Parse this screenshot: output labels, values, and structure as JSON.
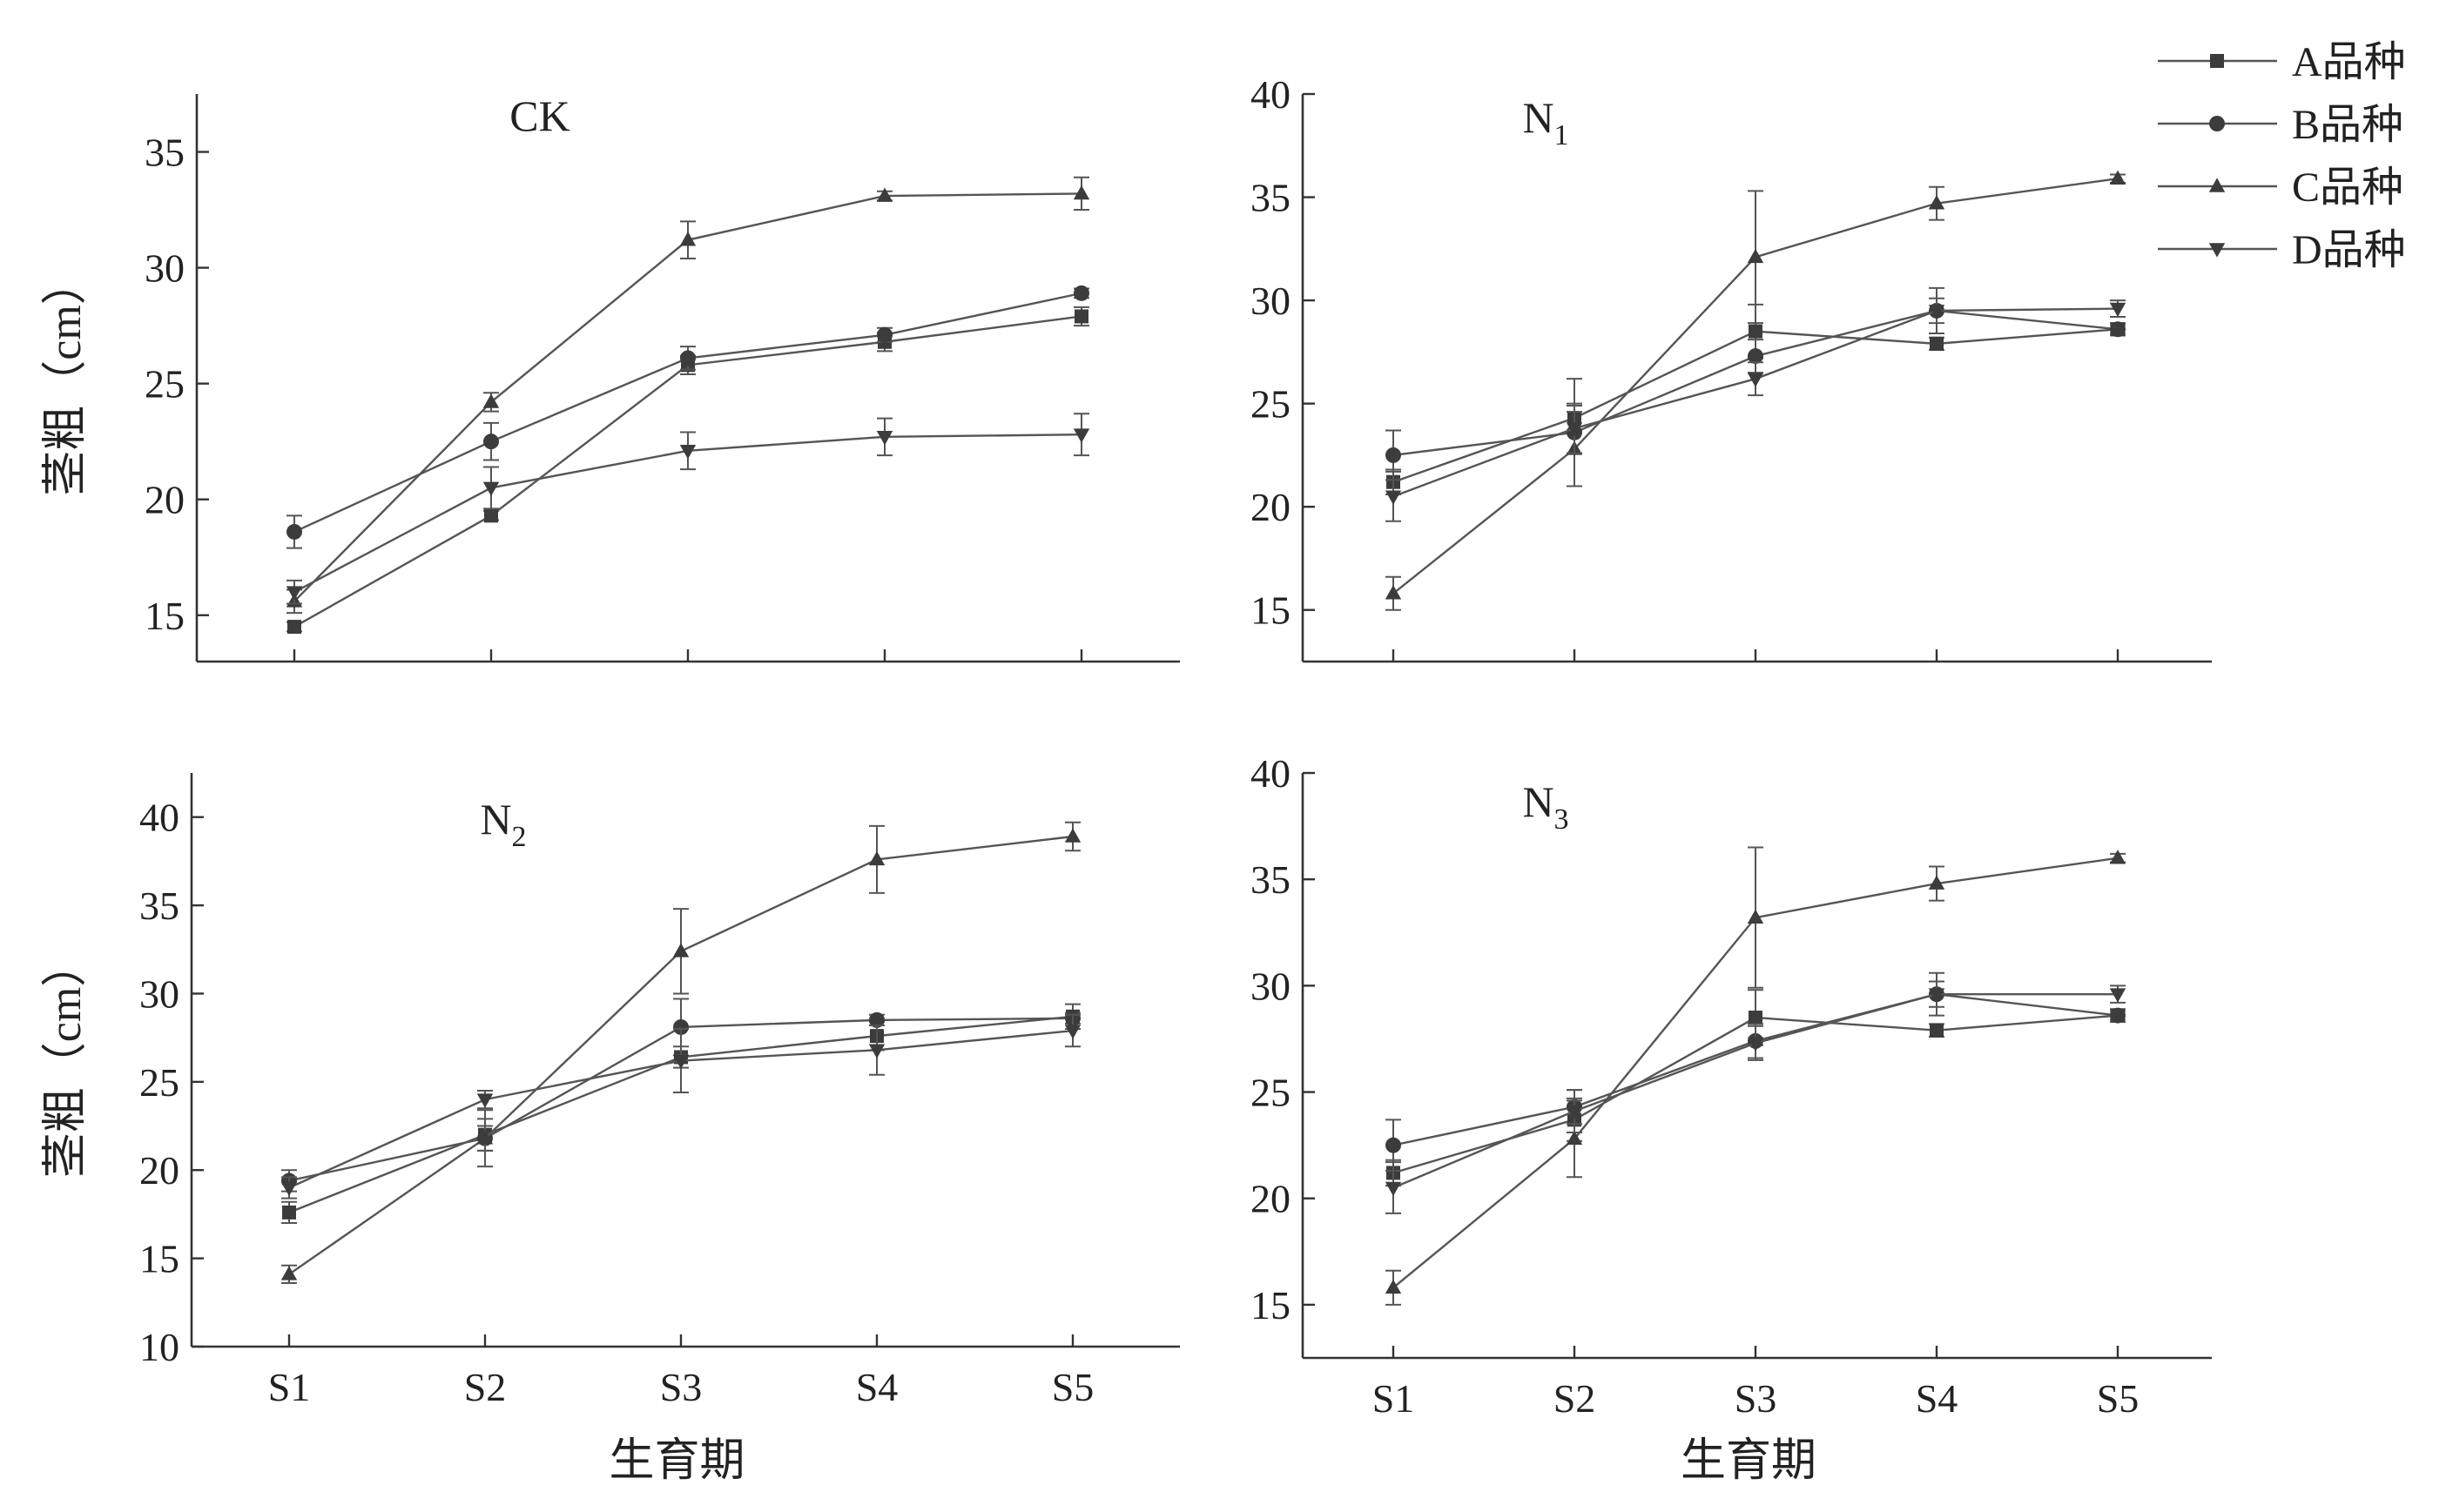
{
  "figure": {
    "ylabel": "茎粗（cm）",
    "xlabel": "生育期",
    "legend": [
      "A品种",
      "B品种",
      "C品种",
      "D品种"
    ],
    "markers": [
      "square",
      "circle",
      "triangle-up",
      "triangle-down"
    ]
  },
  "chart_data": [
    {
      "type": "line",
      "title": "CK",
      "title_sub": "",
      "categories": [
        "S1",
        "S2",
        "S3",
        "S4",
        "S5"
      ],
      "ylim": [
        13,
        37.5
      ],
      "yticks": [
        15,
        20,
        25,
        30,
        35
      ],
      "ylabel": "茎粗（cm）",
      "xlabel": "",
      "series": [
        {
          "name": "A品种",
          "marker": "square",
          "values": [
            14.5,
            19.3,
            25.8,
            26.8,
            27.9
          ],
          "errors": [
            0.2,
            0.2,
            0.4,
            0.4,
            0.4
          ]
        },
        {
          "name": "B品种",
          "marker": "circle",
          "values": [
            18.6,
            22.5,
            26.1,
            27.1,
            28.9
          ],
          "errors": [
            0.7,
            0.8,
            0.5,
            0.3,
            0.2
          ]
        },
        {
          "name": "C品种",
          "marker": "triangle-up",
          "values": [
            15.6,
            24.2,
            31.2,
            33.1,
            33.2
          ],
          "errors": [
            0.5,
            0.4,
            0.8,
            0.2,
            0.7
          ]
        },
        {
          "name": "D品种",
          "marker": "triangle-down",
          "values": [
            16.0,
            20.5,
            22.1,
            22.7,
            22.8
          ],
          "errors": [
            0.5,
            0.9,
            0.8,
            0.8,
            0.9
          ]
        }
      ]
    },
    {
      "type": "line",
      "title": "N",
      "title_sub": "1",
      "categories": [
        "S1",
        "S2",
        "S3",
        "S4",
        "S5"
      ],
      "ylim": [
        12.5,
        40
      ],
      "yticks": [
        15,
        20,
        25,
        30,
        35,
        40
      ],
      "ylabel": "",
      "xlabel": "",
      "series": [
        {
          "name": "A品种",
          "marker": "square",
          "values": [
            21.2,
            24.3,
            28.5,
            27.9,
            28.6
          ],
          "errors": [
            0.6,
            0.6,
            1.3,
            0.3,
            0.3
          ]
        },
        {
          "name": "B品种",
          "marker": "circle",
          "values": [
            22.5,
            23.6,
            27.3,
            29.5,
            28.6
          ],
          "errors": [
            1.2,
            2.6,
            0.8,
            1.1,
            0.2
          ]
        },
        {
          "name": "C品种",
          "marker": "triangle-up",
          "values": [
            15.8,
            22.8,
            32.1,
            34.7,
            35.9
          ],
          "errors": [
            0.8,
            1.8,
            3.2,
            0.8,
            0.2
          ]
        },
        {
          "name": "D品种",
          "marker": "triangle-down",
          "values": [
            20.5,
            23.8,
            26.2,
            29.5,
            29.6
          ],
          "errors": [
            1.2,
            1.2,
            0.8,
            0.6,
            0.4
          ]
        }
      ]
    },
    {
      "type": "line",
      "title": "N",
      "title_sub": "2",
      "categories": [
        "S1",
        "S2",
        "S3",
        "S4",
        "S5"
      ],
      "ylim": [
        10,
        42.5
      ],
      "yticks": [
        10,
        15,
        20,
        25,
        30,
        35,
        40
      ],
      "ylabel": "茎粗（cm）",
      "xlabel": "生育期",
      "series": [
        {
          "name": "A品种",
          "marker": "square",
          "values": [
            17.6,
            22.0,
            26.4,
            27.6,
            28.7
          ],
          "errors": [
            0.6,
            0.9,
            0.6,
            0.8,
            0.7
          ]
        },
        {
          "name": "B品种",
          "marker": "circle",
          "values": [
            19.4,
            21.8,
            28.1,
            28.5,
            28.6
          ],
          "errors": [
            0.6,
            0.7,
            1.6,
            0.3,
            0.3
          ]
        },
        {
          "name": "C品种",
          "marker": "triangle-up",
          "values": [
            14.1,
            21.8,
            32.4,
            37.6,
            38.9
          ],
          "errors": [
            0.5,
            1.6,
            2.4,
            1.9,
            0.8
          ]
        },
        {
          "name": "D品种",
          "marker": "triangle-down",
          "values": [
            19.0,
            24.0,
            26.2,
            26.8,
            27.9
          ],
          "errors": [
            0.6,
            0.5,
            1.8,
            1.4,
            0.9
          ]
        }
      ]
    },
    {
      "type": "line",
      "title": "N",
      "title_sub": "3",
      "categories": [
        "S1",
        "S2",
        "S3",
        "S4",
        "S5"
      ],
      "ylim": [
        12.5,
        40
      ],
      "yticks": [
        15,
        20,
        25,
        30,
        35,
        40
      ],
      "ylabel": "",
      "xlabel": "生育期",
      "series": [
        {
          "name": "A品种",
          "marker": "square",
          "values": [
            21.2,
            23.7,
            28.5,
            27.9,
            28.6
          ],
          "errors": [
            0.6,
            1.0,
            1.3,
            0.3,
            0.3
          ]
        },
        {
          "name": "B品种",
          "marker": "circle",
          "values": [
            22.5,
            24.3,
            27.4,
            29.6,
            28.6
          ],
          "errors": [
            1.2,
            0.8,
            0.8,
            1.0,
            0.2
          ]
        },
        {
          "name": "C品种",
          "marker": "triangle-up",
          "values": [
            15.8,
            22.8,
            33.2,
            34.8,
            36.0
          ],
          "errors": [
            0.8,
            1.8,
            3.3,
            0.8,
            0.2
          ]
        },
        {
          "name": "D品种",
          "marker": "triangle-down",
          "values": [
            20.5,
            24.1,
            27.3,
            29.6,
            29.6
          ],
          "errors": [
            1.2,
            1.0,
            0.8,
            0.6,
            0.4
          ]
        }
      ]
    }
  ]
}
